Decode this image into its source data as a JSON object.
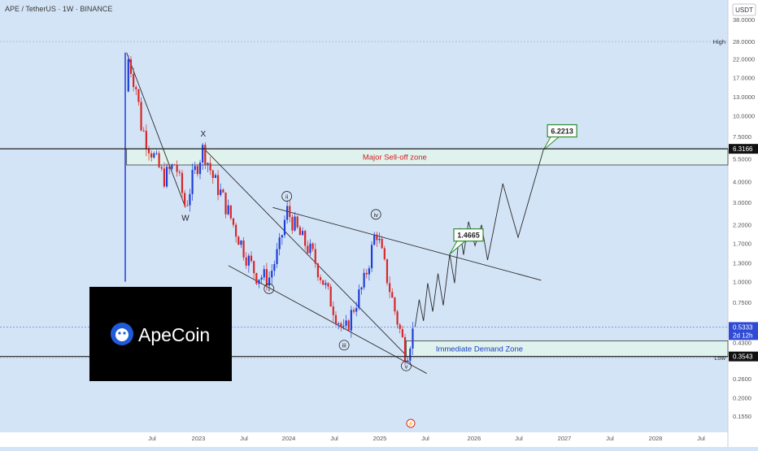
{
  "header": {
    "title": "APE / TetherUS · 1W · BINANCE"
  },
  "currency_label": "USDT",
  "logo": {
    "text": "ApeCoin"
  },
  "colors": {
    "background": "#d4e4f7",
    "axis_bg": "#ffffff",
    "candle_up": "#1e3fd6",
    "candle_down": "#d62828",
    "zone_fill": "#dff2ee",
    "sell_zone_text": "#d42020",
    "demand_zone_text": "#1d3fc6",
    "target_border": "#2e8b2e",
    "current_price_bg": "#2f4bd6"
  },
  "chart_data": {
    "type": "candlestick",
    "y_scale": "log",
    "y_ticks": [
      "38.0000",
      "28.0000",
      "22.0000",
      "17.0000",
      "13.0000",
      "10.0000",
      "7.5000",
      "5.5000",
      "4.0000",
      "3.0000",
      "2.2000",
      "1.7000",
      "1.3000",
      "1.0000",
      "0.7500",
      "0.5333",
      "0.4300",
      "0.3543",
      "0.3484",
      "0.2600",
      "0.2000",
      "0.1550"
    ],
    "ylim": [
      0.13,
      40
    ],
    "x_ticks": [
      "Jul",
      "2023",
      "Jul",
      "2024",
      "Jul",
      "2025",
      "Jul",
      "2026",
      "Jul",
      "2027",
      "Jul",
      "2028",
      "Jul"
    ],
    "price_path": [
      [
        "2022-03-20",
        1.0
      ],
      [
        "2022-03-20",
        24.0
      ],
      [
        "2022-05-01",
        14.0
      ],
      [
        "2022-05-15",
        9.0
      ],
      [
        "2022-06-10",
        7.0
      ],
      [
        "2022-08-15",
        4.2
      ],
      [
        "2022-10-01",
        5.2
      ],
      [
        "2022-11-10",
        2.8
      ],
      [
        "2022-12-10",
        4.3
      ],
      [
        "2023-01-20",
        6.4
      ],
      [
        "2023-03-01",
        4.2
      ],
      [
        "2023-04-01",
        3.4
      ],
      [
        "2023-06-01",
        2.0
      ],
      [
        "2023-07-15",
        1.4
      ],
      [
        "2023-08-20",
        1.1
      ],
      [
        "2023-10-10",
        1.05
      ],
      [
        "2023-11-20",
        1.6
      ],
      [
        "2023-12-20",
        2.7
      ],
      [
        "2024-02-10",
        1.9
      ],
      [
        "2024-04-01",
        1.45
      ],
      [
        "2024-06-01",
        0.85
      ],
      [
        "2024-08-05",
        0.48
      ],
      [
        "2024-09-15",
        0.72
      ],
      [
        "2024-10-20",
        0.95
      ],
      [
        "2024-11-25",
        1.6
      ],
      [
        "2024-12-10",
        2.1
      ],
      [
        "2025-01-10",
        1.3
      ],
      [
        "2025-02-20",
        0.7
      ],
      [
        "2025-03-25",
        0.45
      ],
      [
        "2025-04-10",
        0.36
      ],
      [
        "2025-05-01",
        0.48
      ],
      [
        "2025-05-15",
        0.5333
      ]
    ],
    "projection_path": [
      [
        "2025-05-15",
        0.5333
      ],
      [
        "2025-06-01",
        0.78
      ],
      [
        "2025-06-18",
        0.58
      ],
      [
        "2025-07-05",
        0.98
      ],
      [
        "2025-07-25",
        0.66
      ],
      [
        "2025-08-15",
        1.12
      ],
      [
        "2025-09-05",
        0.72
      ],
      [
        "2025-10-01",
        1.4665
      ],
      [
        "2025-10-20",
        0.98
      ],
      [
        "2025-11-10",
        2.1
      ],
      [
        "2025-11-25",
        1.45
      ],
      [
        "2025-12-15",
        2.3
      ],
      [
        "2026-01-10",
        1.65
      ],
      [
        "2026-02-05",
        2.2
      ],
      [
        "2026-03-01",
        1.35
      ],
      [
        "2026-05-01",
        3.9
      ],
      [
        "2026-07-01",
        1.85
      ],
      [
        "2026-10-10",
        6.2213
      ]
    ],
    "zones": [
      {
        "label": "Major Sell-off zone",
        "top": 6.3166,
        "bottom": 5.05,
        "x_start": "2022-03-20"
      },
      {
        "label": "Immediate Demand Zone",
        "top": 0.44,
        "bottom": 0.3543,
        "x_start": "2025-04-10"
      }
    ],
    "horizontal_lines": [
      {
        "label": "High",
        "value": 28.0
      },
      {
        "label": "Low",
        "value": 0.3484
      }
    ],
    "targets": [
      {
        "text": "1.4665",
        "date": "2025-10-01",
        "value": 1.4665
      },
      {
        "text": "6.2213",
        "date": "2026-10-10",
        "value": 6.2213
      }
    ],
    "wave_labels": [
      {
        "text": "W",
        "date": "2022-11-10",
        "value": 2.8,
        "style": "plain"
      },
      {
        "text": "X",
        "date": "2023-01-20",
        "value": 6.4,
        "style": "plain"
      },
      {
        "text": "i",
        "date": "2023-10-10",
        "value": 1.05,
        "style": "circle"
      },
      {
        "text": "ii",
        "date": "2023-12-20",
        "value": 2.7,
        "style": "circle"
      },
      {
        "text": "iii",
        "date": "2024-08-05",
        "value": 0.48,
        "style": "circle"
      },
      {
        "text": "iv",
        "date": "2024-12-10",
        "value": 2.1,
        "style": "circle"
      },
      {
        "text": "v",
        "date": "2025-04-10",
        "value": 0.36,
        "style": "circle"
      }
    ],
    "trendlines": [
      {
        "from": [
          "2022-03-20",
          24.0
        ],
        "to": [
          "2022-11-10",
          2.8
        ]
      },
      {
        "from": [
          "2023-01-20",
          6.4
        ],
        "to": [
          "2025-04-10",
          0.36
        ]
      },
      {
        "from": [
          "2023-05-01",
          1.25
        ],
        "to": [
          "2025-07-01",
          0.28
        ]
      },
      {
        "from": [
          "2023-10-25",
          2.8
        ],
        "to": [
          "2026-10-01",
          1.02
        ]
      }
    ],
    "price_labels": [
      {
        "text": "6.3166",
        "value": 6.3166,
        "style": "dark"
      },
      {
        "text": "0.5333",
        "value": 0.5333,
        "style": "current",
        "sub": "2d 12h"
      },
      {
        "text": "0.3543",
        "value": 0.3543,
        "style": "dark"
      }
    ]
  }
}
